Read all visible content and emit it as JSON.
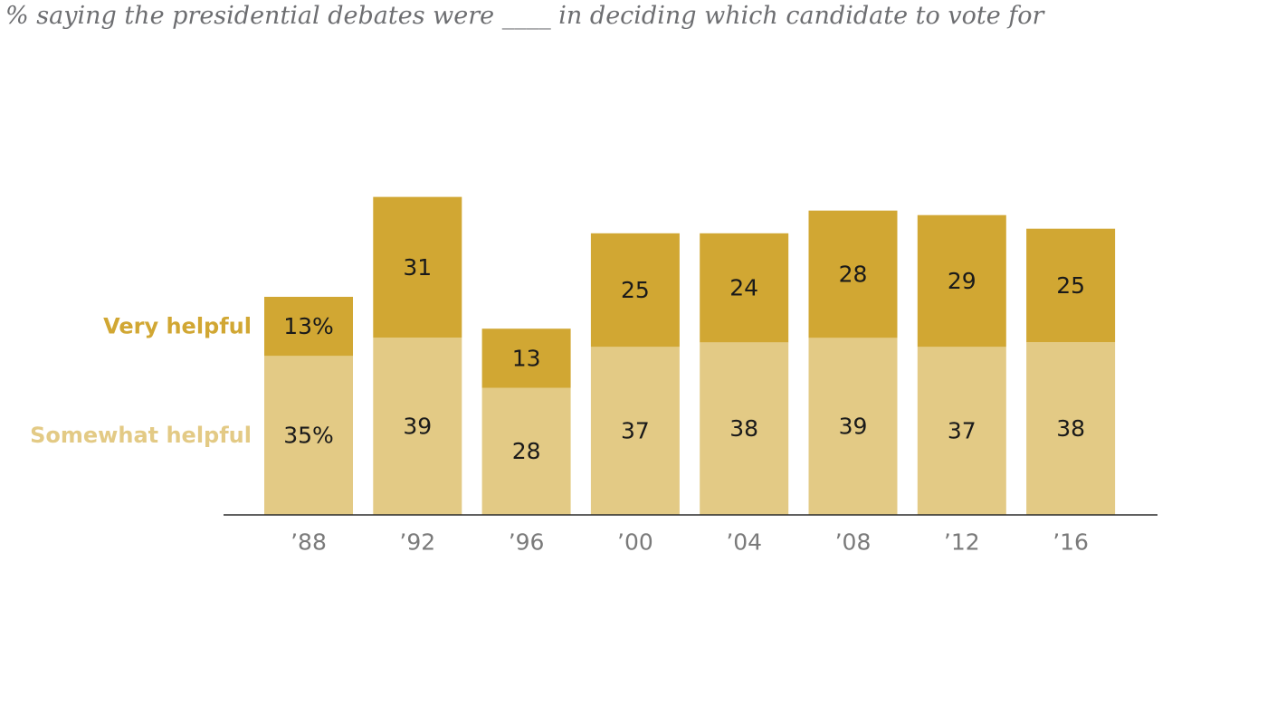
{
  "subtitle": "% saying the presidential debates were ____  in deciding which candidate to vote for",
  "chart_data": {
    "type": "bar",
    "stacked": true,
    "categories": [
      "’88",
      "’92",
      "’96",
      "’00",
      "’04",
      "’08",
      "’12",
      "’16"
    ],
    "series": [
      {
        "name": "Somewhat helpful",
        "color": "#e3ca85",
        "values": [
          35,
          39,
          28,
          37,
          38,
          39,
          37,
          38
        ],
        "labels": [
          "35%",
          "39",
          "28",
          "37",
          "38",
          "39",
          "37",
          "38"
        ]
      },
      {
        "name": "Very helpful",
        "color": "#d1a733",
        "values": [
          13,
          31,
          13,
          25,
          24,
          28,
          29,
          25
        ],
        "labels": [
          "13%",
          "31",
          "13",
          "25",
          "24",
          "28",
          "29",
          "25"
        ]
      }
    ],
    "legend": "left"
  }
}
